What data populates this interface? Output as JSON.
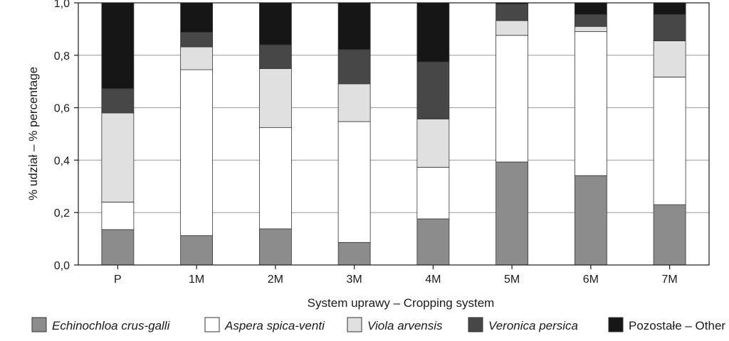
{
  "chart_data": {
    "type": "bar",
    "stacked": true,
    "categories": [
      "P",
      "1M",
      "2M",
      "3M",
      "4M",
      "5M",
      "6M",
      "7M"
    ],
    "series": [
      {
        "name": "Echinochloa crus-galli",
        "italic": true,
        "color": "#8c8c8c",
        "values": [
          0.135,
          0.112,
          0.138,
          0.086,
          0.176,
          0.393,
          0.341,
          0.23
        ]
      },
      {
        "name": "Aspera spica-venti",
        "italic": true,
        "color": "#ffffff",
        "values": [
          0.105,
          0.633,
          0.386,
          0.461,
          0.197,
          0.483,
          0.549,
          0.487
        ]
      },
      {
        "name": "Viola arvensis",
        "italic": true,
        "color": "#e0e0e0",
        "values": [
          0.34,
          0.087,
          0.225,
          0.144,
          0.184,
          0.056,
          0.02,
          0.138
        ]
      },
      {
        "name": "Veronica persica",
        "italic": true,
        "color": "#474747",
        "values": [
          0.093,
          0.056,
          0.091,
          0.131,
          0.218,
          0.064,
          0.046,
          0.101
        ]
      },
      {
        "name": "Pozostałe – Other",
        "italic": false,
        "color": "#161616",
        "values": [
          0.327,
          0.112,
          0.16,
          0.178,
          0.225,
          0.004,
          0.044,
          0.044
        ]
      }
    ],
    "xlabel": "System uprawy – Cropping system",
    "ylabel": "% udział – % percentage",
    "ylim": [
      0,
      1
    ],
    "yticks": [
      "0,0",
      "0,2",
      "0,4",
      "0,6",
      "0,8",
      "1,0"
    ],
    "ytick_values": [
      0,
      0.2,
      0.4,
      0.6,
      0.8,
      1.0
    ],
    "grid": true,
    "legend_position": "bottom"
  }
}
